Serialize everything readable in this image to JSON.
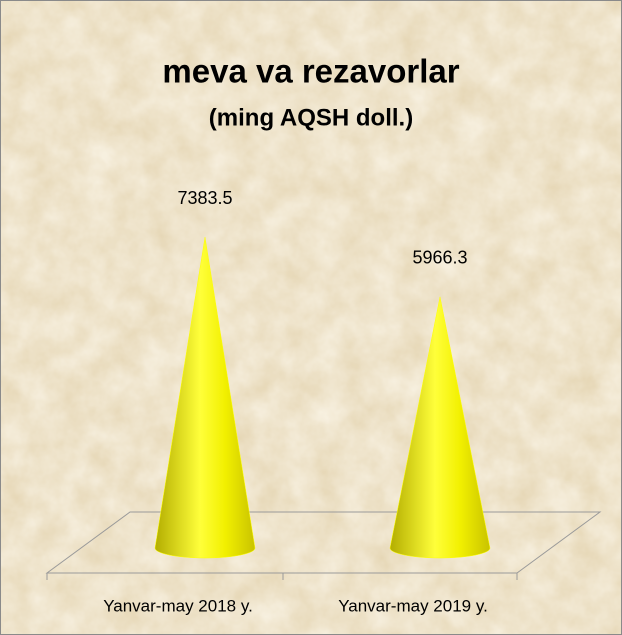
{
  "chart_data": {
    "type": "cone",
    "title": "meva va rezavorlar",
    "subtitle": "(ming AQSH doll.)",
    "categories": [
      "Yanvar-may 2018 y.",
      "Yanvar-may 2019 y."
    ],
    "values": [
      7383.5,
      5966.3
    ],
    "color": "#ffff00"
  }
}
